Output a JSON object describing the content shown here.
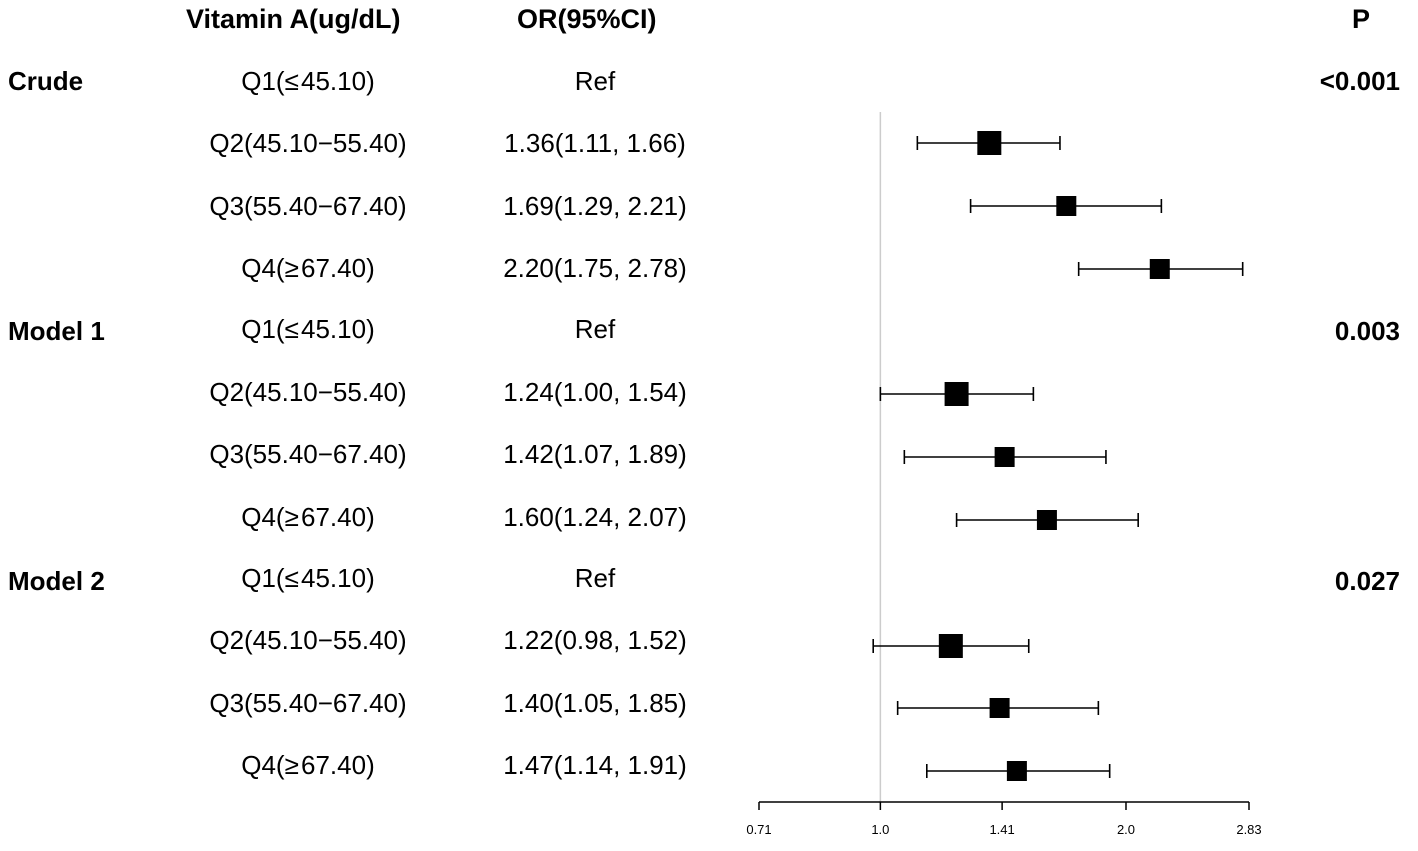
{
  "headers": {
    "vitamin": "Vitamin A(ug/dL)",
    "or": "OR(95%CI)",
    "p": "P"
  },
  "groups": [
    {
      "name": "Crude",
      "p": "<0.001",
      "rows": [
        {
          "label": "Q1(≤ 45.10)",
          "or_text": "Ref"
        },
        {
          "label": "Q2(45.10−55.40)",
          "or_text": "1.36(1.11, 1.66)"
        },
        {
          "label": "Q3(55.40−67.40)",
          "or_text": "1.69(1.29, 2.21)"
        },
        {
          "label": "Q4(≥ 67.40)",
          "or_text": "2.20(1.75, 2.78)"
        }
      ]
    },
    {
      "name": "Model 1",
      "p": "0.003",
      "rows": [
        {
          "label": "Q1(≤ 45.10)",
          "or_text": "Ref"
        },
        {
          "label": "Q2(45.10−55.40)",
          "or_text": "1.24(1.00, 1.54)"
        },
        {
          "label": "Q3(55.40−67.40)",
          "or_text": "1.42(1.07, 1.89)"
        },
        {
          "label": "Q4(≥ 67.40)",
          "or_text": "1.60(1.24, 2.07)"
        }
      ]
    },
    {
      "name": "Model 2",
      "p": "0.027",
      "rows": [
        {
          "label": "Q1(≤ 45.10)",
          "or_text": "Ref"
        },
        {
          "label": "Q2(45.10−55.40)",
          "or_text": "1.22(0.98, 1.52)"
        },
        {
          "label": "Q3(55.40−67.40)",
          "or_text": "1.40(1.05, 1.85)"
        },
        {
          "label": "Q4(≥ 67.40)",
          "or_text": "1.47(1.14, 1.91)"
        }
      ]
    }
  ],
  "chart_data": {
    "type": "scatter",
    "subtype": "forest_plot",
    "scale": "log2",
    "xlim": [
      0.71,
      2.83
    ],
    "xticks": [
      "0.71",
      "1.0",
      "1.41",
      "2.0",
      "2.83"
    ],
    "reference_line": 1.0,
    "series": [
      {
        "name": "Crude",
        "points": [
          {
            "category": "Q2",
            "or": 1.36,
            "lower": 1.11,
            "upper": 1.66
          },
          {
            "category": "Q3",
            "or": 1.69,
            "lower": 1.29,
            "upper": 2.21
          },
          {
            "category": "Q4",
            "or": 2.2,
            "lower": 1.75,
            "upper": 2.78
          }
        ]
      },
      {
        "name": "Model 1",
        "points": [
          {
            "category": "Q2",
            "or": 1.24,
            "lower": 1.0,
            "upper": 1.54
          },
          {
            "category": "Q3",
            "or": 1.42,
            "lower": 1.07,
            "upper": 1.89
          },
          {
            "category": "Q4",
            "or": 1.6,
            "lower": 1.24,
            "upper": 2.07
          }
        ]
      },
      {
        "name": "Model 2",
        "points": [
          {
            "category": "Q2",
            "or": 1.22,
            "lower": 0.98,
            "upper": 1.52
          },
          {
            "category": "Q3",
            "or": 1.4,
            "lower": 1.05,
            "upper": 1.85
          },
          {
            "category": "Q4",
            "or": 1.47,
            "lower": 1.14,
            "upper": 1.91
          }
        ]
      }
    ],
    "colors": {
      "marker": "#000000",
      "reference": "#cccccc",
      "axis": "#000000"
    }
  }
}
